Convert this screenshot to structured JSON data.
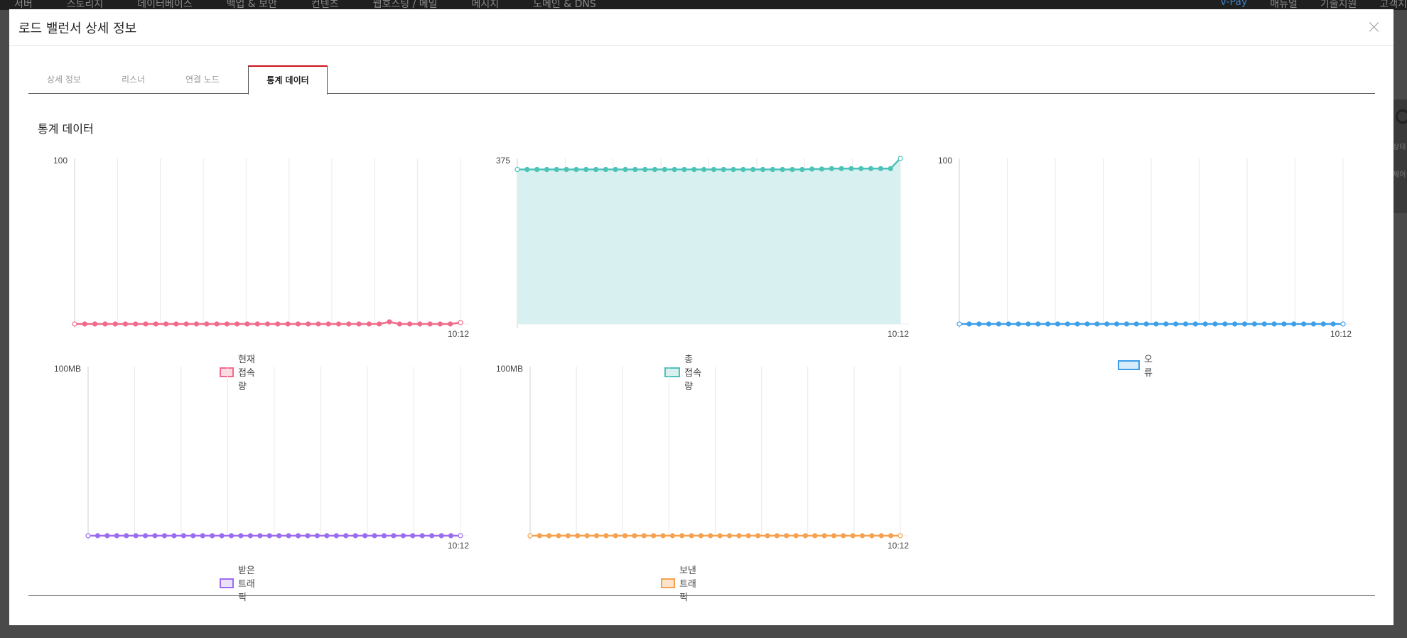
{
  "background_nav": {
    "left_items": [
      "서버",
      "스토리지",
      "데이터베이스",
      "백업 & 보안",
      "컨텐츠",
      "웹호스팅 / 메일",
      "메시지",
      "도메인 & DNS"
    ],
    "right_items": [
      "V-Pay",
      "매뉴얼",
      "기술지원",
      "고객지"
    ]
  },
  "background_side": {
    "labels": [
      "상태",
      "제어"
    ]
  },
  "modal": {
    "title": "로드 밸런서 상세 정보",
    "tabs": [
      {
        "label": "상세 정보",
        "active": false
      },
      {
        "label": "리스너",
        "active": false
      },
      {
        "label": "연결 노드",
        "active": false
      },
      {
        "label": "통계 데이터",
        "active": true
      }
    ],
    "section_title": "통계 데이터"
  },
  "chart_data": [
    {
      "type": "line",
      "ymax_label": "100",
      "ylim": [
        0,
        100
      ],
      "x_last_label": "10:12",
      "series": [
        {
          "name": "현재 접속량",
          "color": "#f06b8b",
          "fill": "#fbdbe2",
          "values": [
            0,
            0,
            0,
            0,
            0,
            0,
            0,
            0,
            0,
            0,
            0,
            0,
            0,
            0,
            0,
            0,
            0,
            0,
            0,
            0,
            0,
            0,
            0,
            0,
            0,
            0,
            0,
            0,
            0,
            0,
            0,
            1.3,
            0,
            0,
            0,
            0,
            0,
            0,
            0.8
          ]
        }
      ],
      "area": false
    },
    {
      "type": "area",
      "ymax_label": "375",
      "ylim": [
        0,
        375
      ],
      "x_last_label": "10:12",
      "series": [
        {
          "name": "총 접속량",
          "color": "#4cc3b8",
          "fill": "#d8f1f0",
          "values": [
            350,
            350,
            350,
            350,
            350,
            350,
            350,
            350,
            350,
            350,
            350,
            350,
            350,
            350,
            350,
            350,
            350,
            350,
            350,
            350,
            350,
            350,
            350,
            350,
            350,
            350,
            350,
            350,
            350,
            350,
            351,
            351,
            352,
            352,
            352,
            352,
            352,
            352,
            352,
            375
          ]
        }
      ],
      "area": true
    },
    {
      "type": "line",
      "ymax_label": "100",
      "ylim": [
        0,
        100
      ],
      "x_last_label": "10:12",
      "series": [
        {
          "name": "오류",
          "color": "#3d9fe8",
          "fill": "#d7ebfa",
          "values": [
            0,
            0,
            0,
            0,
            0,
            0,
            0,
            0,
            0,
            0,
            0,
            0,
            0,
            0,
            0,
            0,
            0,
            0,
            0,
            0,
            0,
            0,
            0,
            0,
            0,
            0,
            0,
            0,
            0,
            0,
            0,
            0,
            0,
            0,
            0,
            0,
            0,
            0,
            0,
            0
          ]
        }
      ],
      "area": false
    },
    {
      "type": "line",
      "ymax_label": "100MB",
      "ylim": [
        0,
        100
      ],
      "x_last_label": "10:12",
      "series": [
        {
          "name": "받은 트래픽",
          "color": "#9b6bf0",
          "fill": "#ebe1fc",
          "values": [
            0,
            0,
            0,
            0,
            0,
            0,
            0,
            0,
            0,
            0,
            0,
            0,
            0,
            0,
            0,
            0,
            0,
            0,
            0,
            0,
            0,
            0,
            0,
            0,
            0,
            0,
            0,
            0,
            0,
            0,
            0,
            0,
            0,
            0,
            0,
            0,
            0,
            0,
            0,
            0
          ]
        }
      ],
      "area": false
    },
    {
      "type": "line",
      "ymax_label": "100MB",
      "ylim": [
        0,
        100
      ],
      "x_last_label": "10:12",
      "series": [
        {
          "name": "보낸 트래픽",
          "color": "#f5a14f",
          "fill": "#fde3cb",
          "values": [
            0,
            0,
            0,
            0,
            0,
            0,
            0,
            0,
            0,
            0,
            0,
            0,
            0,
            0,
            0,
            0,
            0,
            0,
            0,
            0,
            0,
            0,
            0,
            0,
            0,
            0,
            0,
            0,
            0,
            0,
            0,
            0,
            0,
            0,
            0,
            0,
            0,
            0,
            0,
            0
          ]
        }
      ],
      "area": false
    }
  ]
}
